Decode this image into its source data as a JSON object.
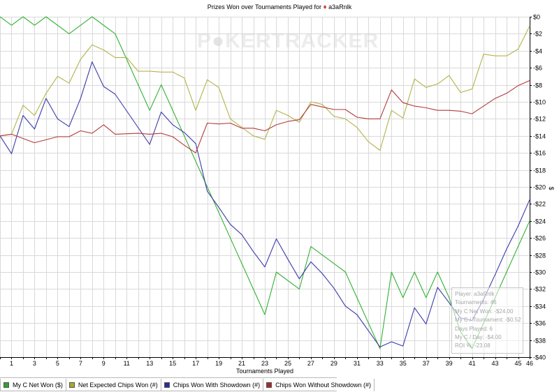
{
  "title": {
    "prefix": "Prizes Won over Tournaments Played for",
    "player": "a3aRnlk"
  },
  "watermark": {
    "left": "P",
    "mid": "KER",
    "right": "TRACKER"
  },
  "legend": [
    {
      "label": "My C Net Won ($)",
      "color": "#2aa52a"
    },
    {
      "label": "Net Expected Chips Won (#)",
      "color": "#a8a82a"
    },
    {
      "label": "Chips Won With Showdown (#)",
      "color": "#2a2aa0"
    },
    {
      "label": "Chips Won Without Showdown (#)",
      "color": "#a52a2a"
    }
  ],
  "stats": [
    "Player: a3aRnlk",
    "Tournaments: 46",
    "My C Net Won: -$24.00",
    "My C / Tournament: -$0.52",
    "Days Played: 6",
    "My C / Day: -$4.00",
    "ROI %: -23.08"
  ],
  "chart_data": {
    "type": "line",
    "title": "Prizes Won over Tournaments Played for a3aRnlk",
    "xlabel": "Tournaments Played",
    "ylabel": "$",
    "xlim": [
      0,
      46
    ],
    "ylim": [
      -40,
      0
    ],
    "x_ticks": [
      1,
      3,
      5,
      7,
      9,
      11,
      13,
      15,
      17,
      19,
      21,
      23,
      25,
      27,
      29,
      31,
      33,
      35,
      37,
      39,
      41,
      43,
      45,
      46
    ],
    "y_ticks": [
      0,
      -2,
      -4,
      -6,
      -8,
      -10,
      -12,
      -14,
      -16,
      -18,
      -20,
      -22,
      -24,
      -26,
      -28,
      -30,
      -32,
      -34,
      -36,
      -38,
      -40
    ],
    "y_tick_labels": [
      "$0",
      "-$2",
      "-$4",
      "-$6",
      "-$8",
      "-$10",
      "-$12",
      "-$14",
      "-$16",
      "-$18",
      "-$20",
      "-$22",
      "-$24",
      "-$26",
      "-$28",
      "-$30",
      "-$32",
      "-$34",
      "-$36",
      "-$38",
      "-$40"
    ],
    "grid": true,
    "axis_side": "right",
    "series": [
      {
        "name": "My C Net Won ($)",
        "color": "#33b133",
        "x": [
          0,
          1,
          2,
          3,
          4,
          6,
          8,
          10,
          11,
          13,
          14,
          16,
          18,
          20,
          22,
          23,
          24,
          26,
          27,
          30,
          33,
          34,
          35,
          36,
          37,
          38,
          39,
          40,
          41,
          42,
          43,
          44,
          45,
          46
        ],
        "y": [
          0,
          -1,
          0,
          -1,
          0,
          -2,
          0,
          -2,
          -5,
          -11,
          -8,
          -14,
          -20,
          -26,
          -32,
          -35,
          -30,
          -32,
          -27,
          -30,
          -39,
          -30,
          -33,
          -30,
          -33,
          -30,
          -33,
          -37,
          -39,
          -36,
          -33,
          -30,
          -27,
          -24
        ]
      },
      {
        "name": "Net Expected Chips Won (#)",
        "color": "#b3b34a",
        "x": [
          0,
          1,
          2,
          3,
          4,
          5,
          6,
          7,
          8,
          9,
          10,
          11,
          12,
          13,
          14,
          15,
          16,
          17,
          18,
          19,
          20,
          21,
          22,
          23,
          24,
          25,
          26,
          27,
          28,
          29,
          30,
          31,
          32,
          33,
          34,
          35,
          36,
          37,
          38,
          39,
          40,
          41,
          42,
          43,
          44,
          45,
          46
        ],
        "y": [
          -14,
          -13.8,
          -10.4,
          -11.6,
          -9,
          -7,
          -7.8,
          -5,
          -3.3,
          -3.9,
          -4.8,
          -4.8,
          -6.4,
          -6.4,
          -6.5,
          -6.5,
          -7.2,
          -11,
          -7.4,
          -8.3,
          -12,
          -13,
          -14,
          -14.4,
          -11,
          -11.6,
          -12.4,
          -10,
          -10.3,
          -11.7,
          -12,
          -13,
          -14.7,
          -15.7,
          -11,
          -11.9,
          -7.3,
          -8.3,
          -7.9,
          -6.9,
          -8.9,
          -8.5,
          -4.4,
          -4.6,
          -4.6,
          -3.8,
          -1.1
        ]
      },
      {
        "name": "Chips Won With Showdown (#)",
        "color": "#3a3aa8",
        "x": [
          0,
          1,
          2,
          3,
          4,
          5,
          6,
          7,
          8,
          9,
          10,
          13,
          14,
          15,
          16,
          17,
          18,
          19,
          20,
          21,
          22,
          23,
          24,
          25,
          26,
          27,
          28,
          29,
          30,
          31,
          32,
          33,
          34,
          35,
          36,
          37,
          38,
          39,
          40,
          41,
          42,
          43,
          44,
          45,
          46
        ],
        "y": [
          -14,
          -16.1,
          -11.6,
          -13.2,
          -9.6,
          -12,
          -12.9,
          -9.6,
          -5.3,
          -8.2,
          -9.1,
          -15,
          -11.2,
          -12.7,
          -13.6,
          -14.9,
          -20.5,
          -22.4,
          -24.4,
          -25.6,
          -27.6,
          -29.4,
          -26.1,
          -28.5,
          -30.8,
          -28.8,
          -30.2,
          -31.9,
          -34,
          -35,
          -36.9,
          -38.8,
          -38.2,
          -38.7,
          -34.2,
          -36.1,
          -31.8,
          -33.6,
          -35.4,
          -35.7,
          -33.2,
          -30.3,
          -27.3,
          -24.6,
          -21.5
        ]
      },
      {
        "name": "Chips Won Without Showdown (#)",
        "color": "#b33a3a",
        "x": [
          0,
          1,
          3,
          5,
          6,
          7,
          8,
          9,
          10,
          12,
          13,
          14,
          15,
          16,
          17,
          18,
          19,
          20,
          21,
          22,
          23,
          24,
          25,
          26,
          27,
          28,
          29,
          30,
          31,
          32,
          33,
          34,
          35,
          36,
          37,
          38,
          39,
          40,
          41,
          42,
          43,
          44,
          45,
          46
        ],
        "y": [
          -14,
          -13.8,
          -14.8,
          -14.1,
          -14.1,
          -13.4,
          -13.7,
          -12.7,
          -13.8,
          -13.7,
          -13.8,
          -13.7,
          -14.1,
          -15.1,
          -16,
          -12.5,
          -12.6,
          -12.5,
          -13.1,
          -13.1,
          -13.4,
          -12.7,
          -12.3,
          -12.1,
          -10.3,
          -10.6,
          -10.9,
          -10.9,
          -11.8,
          -12,
          -12,
          -8.6,
          -10.1,
          -10.5,
          -10.7,
          -11,
          -11,
          -11.1,
          -11.4,
          -10.5,
          -9.6,
          -9,
          -8.1,
          -7.5
        ]
      }
    ]
  }
}
